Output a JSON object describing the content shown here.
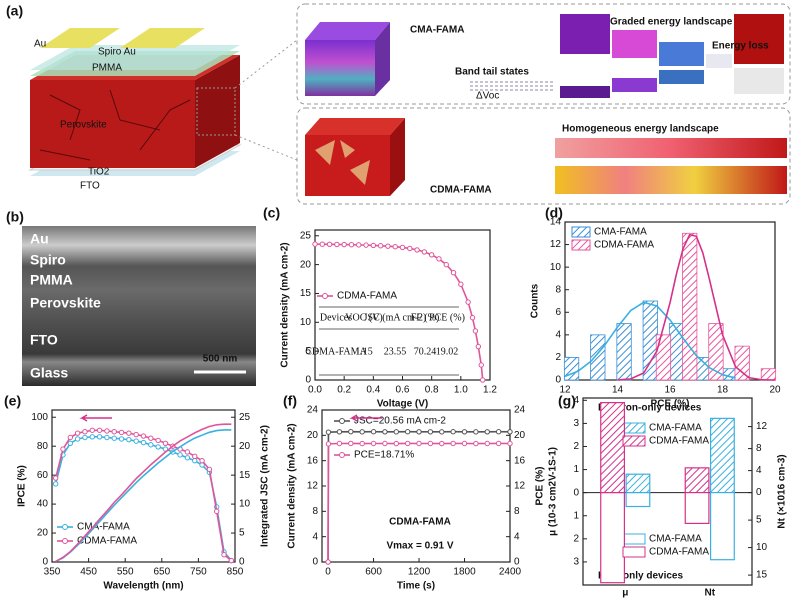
{
  "panels": {
    "a": {
      "label": "(a)",
      "au_left": "Au",
      "spiro_au": "Spiro Au",
      "pmma": "PMMA",
      "perovskite": "Perovskite",
      "tio2": "TiO2",
      "fto": "FTO",
      "cma_title": "CMA-FAMA",
      "graded": "Graded energy landscape",
      "energy_loss": "Energy loss",
      "band_tail": "Band tail states",
      "delta_voc": "ΔVoc",
      "homogeneous": "Homogeneous energy landscape",
      "cdma_title": "CDMA-FAMA"
    },
    "b": {
      "label": "(b)",
      "layers": [
        "Au",
        "Spiro",
        "PMMA",
        "Perovskite",
        "FTO",
        "Glass"
      ],
      "scale_bar": "500 nm"
    }
  },
  "chart_data": [
    {
      "type": "line",
      "panel": "(c)",
      "xlabel": "Voltage (V)",
      "ylabel": "Current density (mA cm-2)",
      "xlim": [
        0,
        1.2
      ],
      "xticks": [
        {
          "value": 0,
          "label": "0.0"
        },
        0.2,
        0.4,
        0.6,
        0.8,
        {
          "value": 1,
          "label": "1.0"
        },
        1.2
      ],
      "ylim": [
        0,
        26
      ],
      "yticks": [
        0,
        5,
        10,
        15,
        20,
        25
      ],
      "series": [
        {
          "name": "CDMA-FAMA",
          "color": "#e0559a",
          "markers": true,
          "x": [
            0,
            0.05,
            0.1,
            0.15,
            0.2,
            0.25,
            0.3,
            0.35,
            0.4,
            0.45,
            0.5,
            0.55,
            0.6,
            0.65,
            0.7,
            0.75,
            0.8,
            0.85,
            0.9,
            0.95,
            1.0,
            1.05,
            1.08,
            1.1,
            1.12,
            1.14,
            1.15
          ],
          "values": [
            23.55,
            23.54,
            23.52,
            23.5,
            23.48,
            23.45,
            23.42,
            23.38,
            23.33,
            23.27,
            23.2,
            23.1,
            22.98,
            22.8,
            22.55,
            22.2,
            21.7,
            21.0,
            20.0,
            18.6,
            16.6,
            13.5,
            10.8,
            8.5,
            5.8,
            2.6,
            0
          ]
        }
      ],
      "table": {
        "columns": [
          "Devices",
          "VOC (V)",
          "JSC (mA cm-2)",
          "FF (%)",
          "PCE (%)"
        ],
        "rows": [
          [
            "CDMA-FAMA",
            1.15,
            23.55,
            70.24,
            19.02
          ]
        ]
      }
    },
    {
      "type": "bar",
      "panel": "(d)",
      "xlabel": "PCE (%)",
      "ylabel": "Counts",
      "legend": "upper left",
      "xlim": [
        12,
        20
      ],
      "xticks": [
        12,
        14,
        16,
        18,
        20
      ],
      "ylim": [
        0,
        14
      ],
      "yticks": [
        0,
        2,
        4,
        6,
        8,
        10,
        12,
        14
      ],
      "series": [
        {
          "name": "CMA-FAMA",
          "color": "#3a8fd6",
          "x": [
            12.25,
            13.25,
            14.25,
            15.25,
            16.25,
            17.25,
            18.25
          ],
          "values": [
            2,
            4,
            5,
            7,
            5,
            2,
            1
          ]
        },
        {
          "name": "CDMA-FAMA",
          "color": "#e8559c",
          "x": [
            15.75,
            16.75,
            17.75,
            18.75,
            19.75
          ],
          "values": [
            4,
            13,
            5,
            3,
            1
          ]
        }
      ],
      "fit_curves": [
        {
          "color": "#3ab0e0",
          "x": [
            12,
            12.5,
            13,
            13.5,
            14,
            14.5,
            15,
            15.5,
            16,
            16.5,
            17,
            17.5,
            18,
            18.5
          ],
          "values": [
            0.32,
            0.79,
            1.68,
            3.04,
            4.69,
            6.15,
            6.88,
            6.56,
            5.32,
            3.69,
            2.17,
            1.09,
            0.47,
            0.17
          ]
        },
        {
          "color": "#d6308a",
          "x": [
            14,
            14.5,
            15,
            15.5,
            16,
            16.25,
            16.5,
            16.75,
            17,
            17.25,
            17.5,
            18,
            18.5,
            19,
            19.5,
            20
          ],
          "values": [
            0.01,
            0.1,
            0.62,
            2.57,
            6.84,
            9.44,
            11.66,
            12.88,
            12.74,
            11.27,
            8.93,
            4.01,
            1.16,
            0.21,
            0.02,
            0
          ]
        }
      ]
    },
    {
      "type": "line",
      "panel": "(e)",
      "xlabel": "Wavelength (nm)",
      "ylabel": "IPCE (%)",
      "y2label": "Integrated JSC (mA cm-2)",
      "xlim": [
        350,
        850
      ],
      "xticks": [
        350,
        450,
        550,
        650,
        750,
        850
      ],
      "ylim": [
        0,
        105
      ],
      "yticks": [
        0,
        20,
        40,
        60,
        80,
        100
      ],
      "y2lim": [
        0,
        26.25
      ],
      "y2ticks": [
        0,
        5,
        10,
        15,
        20,
        25
      ],
      "series": [
        {
          "name": "CMA-FAMA",
          "color": "#3ab0e0",
          "markers": true,
          "x": [
            360,
            380,
            400,
            420,
            440,
            460,
            480,
            500,
            520,
            540,
            560,
            580,
            600,
            620,
            640,
            660,
            680,
            700,
            720,
            740,
            760,
            780,
            800,
            820,
            840
          ],
          "values": [
            54,
            74,
            82,
            85,
            86,
            86.5,
            86.5,
            86,
            85.5,
            85,
            84.5,
            83.5,
            82.5,
            81,
            79.5,
            78,
            76,
            74,
            72,
            70,
            67,
            62,
            38,
            7,
            1
          ]
        },
        {
          "name": "CDMA-FAMA",
          "color": "#e0559a",
          "markers": true,
          "x": [
            360,
            380,
            400,
            420,
            440,
            460,
            480,
            500,
            520,
            540,
            560,
            580,
            600,
            620,
            640,
            660,
            680,
            700,
            720,
            740,
            760,
            780,
            800,
            820,
            840
          ],
          "values": [
            58,
            78,
            86,
            89,
            90,
            91,
            91,
            90.5,
            90,
            89.5,
            89,
            88,
            87,
            85.5,
            84,
            82,
            80,
            78,
            76,
            73,
            70,
            64,
            35,
            5,
            1
          ]
        },
        {
          "color": "#3ab0e0",
          "axis": "y2",
          "x": [
            360,
            380,
            400,
            420,
            440,
            460,
            480,
            500,
            520,
            540,
            560,
            580,
            600,
            620,
            640,
            660,
            680,
            700,
            720,
            740,
            760,
            780,
            800,
            820,
            840
          ],
          "values": [
            0.1,
            0.7,
            1.7,
            2.9,
            4.2,
            5.6,
            7.0,
            8.4,
            9.8,
            11.1,
            12.4,
            13.7,
            14.9,
            16.0,
            17.1,
            18.1,
            19.1,
            19.9,
            20.7,
            21.4,
            21.9,
            22.4,
            22.7,
            22.8,
            22.8
          ]
        },
        {
          "color": "#e0559a",
          "axis": "y2",
          "x": [
            360,
            380,
            400,
            420,
            440,
            460,
            480,
            500,
            520,
            540,
            560,
            580,
            600,
            620,
            640,
            660,
            680,
            700,
            720,
            740,
            760,
            780,
            800,
            820,
            840
          ],
          "values": [
            0.1,
            0.8,
            1.8,
            3.1,
            4.5,
            5.9,
            7.4,
            8.8,
            10.3,
            11.6,
            13.0,
            14.4,
            15.6,
            16.8,
            17.9,
            19.0,
            20.0,
            20.9,
            21.6,
            22.3,
            22.9,
            23.4,
            23.7,
            23.8,
            23.8
          ]
        }
      ]
    },
    {
      "type": "line",
      "panel": "(f)",
      "xlabel": "Time (s)",
      "ylabel": "Current density (mA cm-2)",
      "y2label": "PCE (%)",
      "xlim": [
        -80,
        2400
      ],
      "xticks": [
        0,
        600,
        1200,
        1800,
        2400
      ],
      "ylim": [
        0,
        24
      ],
      "yticks": [
        0,
        4,
        8,
        12,
        16,
        20,
        24
      ],
      "y2lim": [
        0,
        24
      ],
      "y2ticks": [
        0,
        4,
        8,
        12,
        16,
        20,
        24
      ],
      "annotations": [
        "CDMA-FAMA",
        "Vmax = 0.91 V"
      ],
      "series": [
        {
          "name": "JSC=20.56 mA cm-2",
          "color": "#555555",
          "markers": true,
          "x": [
            0,
            5,
            150,
            300,
            450,
            600,
            750,
            900,
            1050,
            1200,
            1350,
            1500,
            1650,
            1800,
            1950,
            2100,
            2250,
            2400
          ],
          "values": [
            0,
            20.5,
            20.56,
            20.58,
            20.55,
            20.57,
            20.56,
            20.55,
            20.57,
            20.56,
            20.56,
            20.55,
            20.57,
            20.56,
            20.55,
            20.56,
            20.57,
            20.56
          ]
        },
        {
          "name": "PCE=18.71%",
          "color": "#e0559a",
          "markers": true,
          "axis": "y2",
          "x": [
            0,
            5,
            150,
            300,
            450,
            600,
            750,
            900,
            1050,
            1200,
            1350,
            1500,
            1650,
            1800,
            1950,
            2100,
            2250,
            2400
          ],
          "values": [
            0,
            18.65,
            18.71,
            18.72,
            18.7,
            18.71,
            18.71,
            18.7,
            18.72,
            18.71,
            18.71,
            18.7,
            18.72,
            18.71,
            18.7,
            18.71,
            18.72,
            18.71
          ]
        }
      ]
    },
    {
      "type": "diverging_bar",
      "panel": "(g)",
      "ylabel": "μ (10-3 cm2V-1S-1)",
      "y2label": "Nt (×1016 cm-3)",
      "categories": [
        "μ",
        "Nt"
      ],
      "category_axes": [
        "y",
        "y2"
      ],
      "ylim": [
        -4,
        4.1
      ],
      "yticks": [
        {
          "value": -3,
          "label": "3"
        },
        {
          "value": -2,
          "label": "2"
        },
        {
          "value": -1,
          "label": "1"
        },
        0,
        1,
        2,
        3,
        4
      ],
      "y2lim": [
        -16.8,
        17.2
      ],
      "y2ticks": [
        {
          "value": -15,
          "label": "15"
        },
        {
          "value": -10,
          "label": "10"
        },
        {
          "value": -5,
          "label": "5"
        },
        0,
        4,
        8,
        12
      ],
      "annotations": [
        "Electron-only devices",
        "Hole-only devices"
      ],
      "series": [
        {
          "name": "CMA-FAMA",
          "color": "#3ab0e0",
          "style": "hatched",
          "values": [
            0.8,
            13.5
          ]
        },
        {
          "name": "CDMA-FAMA",
          "color": "#d6308a",
          "style": "hatched",
          "values": [
            3.9,
            4.5
          ]
        },
        {
          "name": "CMA-FAMA",
          "color": "#3ab0e0",
          "style": "outline",
          "values": [
            -0.6,
            -12.2
          ]
        },
        {
          "name": "CDMA-FAMA",
          "color": "#d6308a",
          "style": "outline",
          "values": [
            -3.9,
            -5.6
          ]
        }
      ]
    }
  ]
}
